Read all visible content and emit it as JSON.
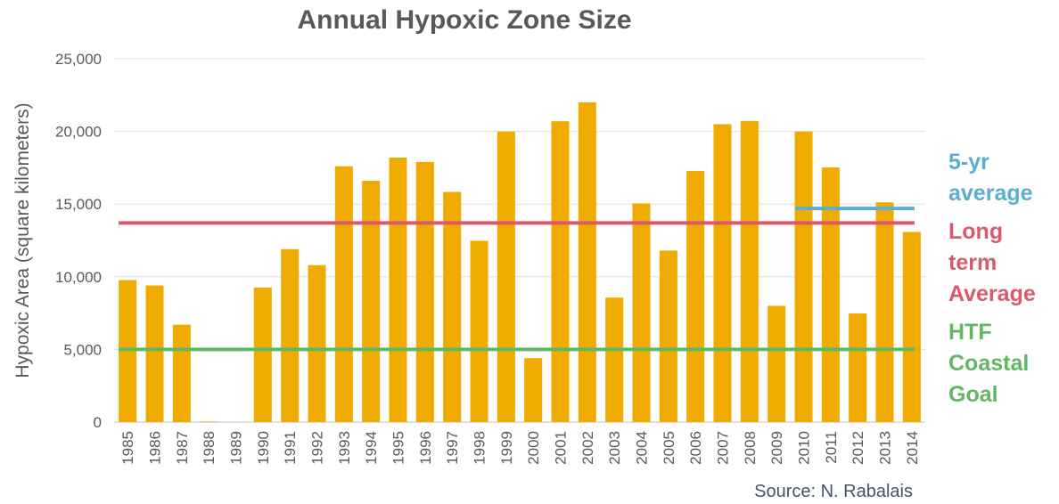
{
  "chart_data": {
    "type": "bar",
    "title": "Annual Hypoxic Zone Size",
    "y_label": "Hypoxic Area (square kilometers)",
    "source": "Source: N. Rabalais",
    "categories": [
      "1985",
      "1986",
      "1987",
      "1988",
      "1989",
      "1990",
      "1991",
      "1992",
      "1993",
      "1994",
      "1995",
      "1996",
      "1997",
      "1998",
      "1999",
      "2000",
      "2001",
      "2002",
      "2003",
      "2004",
      "2005",
      "2006",
      "2007",
      "2008",
      "2009",
      "2010",
      "2011",
      "2012",
      "2013",
      "2014"
    ],
    "values": [
      9774,
      9400,
      6700,
      40,
      null,
      9260,
      11900,
      10800,
      17600,
      16600,
      18200,
      17900,
      15840,
      12480,
      20000,
      4400,
      20700,
      22000,
      8560,
      15040,
      11800,
      17280,
      20500,
      20720,
      8000,
      20000,
      17520,
      7480,
      15120,
      13080
    ],
    "color": "#f0ab00",
    "ylim": [
      0,
      25000
    ],
    "yticks": [
      0,
      {
        "value": 5000,
        "label": "5,000"
      },
      {
        "value": 10000,
        "label": "10,000"
      },
      {
        "value": 15000,
        "label": "15,000"
      },
      {
        "value": 20000,
        "label": "20,000"
      },
      {
        "value": 25000,
        "label": "25,000"
      }
    ],
    "grid": true,
    "reference_lines": [
      {
        "label_lines": [
          "5-yr",
          "average"
        ],
        "value": 14700,
        "color": "#5aaed0",
        "from": "2010",
        "to": "2014"
      },
      {
        "label_lines": [
          "Long",
          "term",
          "Average"
        ],
        "value": 13700,
        "color": "#d95b6b",
        "from": "1985",
        "to": "2014"
      },
      {
        "label_lines": [
          "HTF",
          "Coastal",
          "Goal"
        ],
        "value": 5000,
        "color": "#62b862",
        "from": "1985",
        "to": "2014"
      }
    ]
  }
}
